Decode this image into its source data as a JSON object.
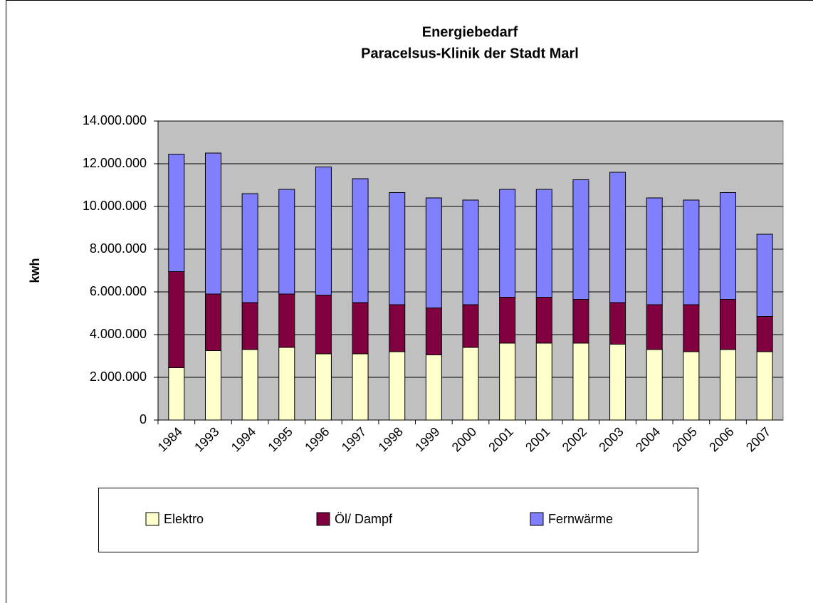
{
  "chart_data": {
    "type": "stacked_bar",
    "title": "Energiebedarf",
    "subtitle": "Paracelsus-Klinik der Stadt Marl",
    "y_label": "kwh",
    "categories": [
      "1984",
      "1993",
      "1994",
      "1995",
      "1996",
      "1997",
      "1998",
      "1999",
      "2000",
      "2001",
      "2001",
      "2002",
      "2003",
      "2004",
      "2005",
      "2006",
      "2007"
    ],
    "series": [
      {
        "name": "Elektro",
        "color": "#ffffcc",
        "values": [
          2450000,
          3250000,
          3300000,
          3400000,
          3100000,
          3100000,
          3200000,
          3050000,
          3400000,
          3600000,
          3600000,
          3600000,
          3550000,
          3300000,
          3200000,
          3300000,
          3200000
        ]
      },
      {
        "name": "Öl/ Dampf",
        "color": "#800040",
        "values": [
          4500000,
          2650000,
          2200000,
          2500000,
          2750000,
          2400000,
          2200000,
          2200000,
          2000000,
          2150000,
          2150000,
          2050000,
          1950000,
          2100000,
          2200000,
          2350000,
          1650000
        ]
      },
      {
        "name": "Fernwärme",
        "color": "#8080ff",
        "values": [
          5500000,
          6600000,
          5100000,
          4900000,
          6000000,
          5800000,
          5250000,
          5150000,
          4900000,
          5050000,
          5050000,
          5600000,
          6100000,
          5000000,
          4900000,
          5000000,
          3850000
        ]
      }
    ],
    "ylim": [
      0,
      14000000
    ],
    "yticks": [
      0,
      {
        "value": 2000000,
        "label": "2.000.000"
      },
      {
        "value": 4000000,
        "label": "4.000.000"
      },
      {
        "value": 6000000,
        "label": "6.000.000"
      },
      {
        "value": 8000000,
        "label": "8.000.000"
      },
      {
        "value": 10000000,
        "label": "10.000.000"
      },
      {
        "value": 12000000,
        "label": "12.000.000"
      },
      {
        "value": 14000000,
        "label": "14.000.000"
      }
    ],
    "grid": true,
    "legend": "bottom"
  }
}
